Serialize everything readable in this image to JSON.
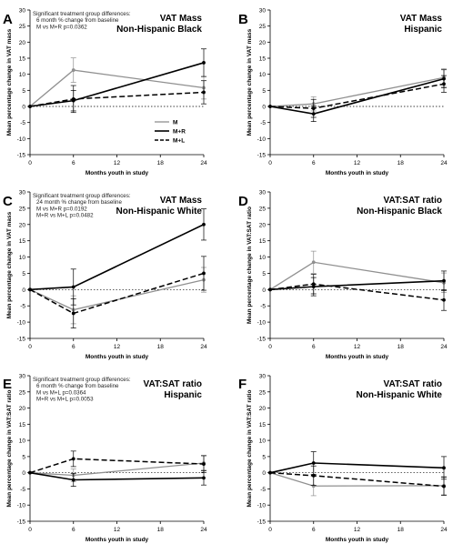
{
  "figure": {
    "xlabel": "Months youth in study",
    "legend": [
      "M",
      "M+R",
      "M+L"
    ]
  },
  "chart_data": [
    {
      "type": "line",
      "panel_letter": "A",
      "title_lines": [
        "VAT Mass",
        "Non-Hispanic Black"
      ],
      "ylabel": "Mean percentage change in VAT mass",
      "annotation": [
        "Significant treatment group differences:",
        "6 month % change from baseline",
        "M vs M+R p=0.0362"
      ],
      "legend_shown": true,
      "x": [
        0,
        6,
        24
      ],
      "xticks": [
        0,
        6,
        12,
        18,
        24
      ],
      "ylim": [
        -15,
        30
      ],
      "yticks": [
        -15,
        -10,
        -5,
        0,
        5,
        10,
        15,
        20,
        25,
        30
      ],
      "series": [
        {
          "name": "M",
          "values": [
            0,
            11.3,
            5.8
          ],
          "err": [
            0,
            3.8,
            3.5
          ]
        },
        {
          "name": "M+R",
          "values": [
            0,
            1.8,
            13.6
          ],
          "err": [
            0,
            3.2,
            4.3
          ]
        },
        {
          "name": "M+L",
          "values": [
            0,
            2.3,
            4.4
          ],
          "err": [
            0,
            4.2,
            3.6
          ]
        }
      ]
    },
    {
      "type": "line",
      "panel_letter": "B",
      "title_lines": [
        "VAT Mass",
        "Hispanic"
      ],
      "ylabel": "Mean percentage change in VAT mass",
      "annotation": [],
      "legend_shown": false,
      "x": [
        0,
        6,
        24
      ],
      "xticks": [
        0,
        6,
        12,
        18,
        24
      ],
      "ylim": [
        -15,
        30
      ],
      "yticks": [
        -15,
        -10,
        -5,
        0,
        5,
        10,
        15,
        20,
        25,
        30
      ],
      "series": [
        {
          "name": "M",
          "values": [
            0,
            0.8,
            9.0
          ],
          "err": [
            0,
            2.2,
            2.8
          ]
        },
        {
          "name": "M+R",
          "values": [
            0,
            -2.3,
            8.6
          ],
          "err": [
            0,
            2.4,
            2.8
          ]
        },
        {
          "name": "M+L",
          "values": [
            0,
            -0.6,
            7.0
          ],
          "err": [
            0,
            2.8,
            2.6
          ]
        }
      ]
    },
    {
      "type": "line",
      "panel_letter": "C",
      "title_lines": [
        "VAT Mass",
        "Non-Hispanic White"
      ],
      "ylabel": "Mean percentage change in VAT mass",
      "annotation": [
        "Significant treatment group differences:",
        "24 month % change from baseline",
        "M vs M+R p=0.0192",
        "M+R vs M+L p=0.0482"
      ],
      "legend_shown": false,
      "x": [
        0,
        6,
        24
      ],
      "xticks": [
        0,
        6,
        12,
        18,
        24
      ],
      "ylim": [
        -15,
        30
      ],
      "yticks": [
        -15,
        -10,
        -5,
        0,
        5,
        10,
        15,
        20,
        25,
        30
      ],
      "series": [
        {
          "name": "M",
          "values": [
            0,
            -6.2,
            3.0
          ],
          "err": [
            0,
            4.3,
            3.8
          ]
        },
        {
          "name": "M+R",
          "values": [
            0,
            0.8,
            20.0
          ],
          "err": [
            0,
            5.5,
            4.8
          ]
        },
        {
          "name": "M+L",
          "values": [
            0,
            -7.3,
            5.0
          ],
          "err": [
            0,
            4.5,
            5.2
          ]
        }
      ]
    },
    {
      "type": "line",
      "panel_letter": "D",
      "title_lines": [
        "VAT:SAT ratio",
        "Non-Hispanic Black"
      ],
      "ylabel": "Mean percentage change in VAT:SAT ratio",
      "annotation": [],
      "legend_shown": false,
      "x": [
        0,
        6,
        24
      ],
      "xticks": [
        0,
        6,
        12,
        18,
        24
      ],
      "ylim": [
        -15,
        30
      ],
      "yticks": [
        -15,
        -10,
        -5,
        0,
        5,
        10,
        15,
        20,
        25,
        30
      ],
      "series": [
        {
          "name": "M",
          "values": [
            0,
            8.4,
            2.1
          ],
          "err": [
            0,
            3.4,
            3.0
          ]
        },
        {
          "name": "M+R",
          "values": [
            0,
            0.9,
            2.7
          ],
          "err": [
            0,
            2.8,
            3.0
          ]
        },
        {
          "name": "M+L",
          "values": [
            0,
            1.7,
            -3.2
          ],
          "err": [
            0,
            3.0,
            3.2
          ]
        }
      ]
    },
    {
      "type": "line",
      "panel_letter": "E",
      "title_lines": [
        "VAT:SAT ratio",
        "Hispanic"
      ],
      "ylabel": "Mean percentage change in VAT:SAT ratio",
      "annotation": [
        "Significant treatment group differences:",
        "6 month % change from baseline",
        "M vs M+L p=0.0364",
        "M+R vs M+L p=0.0053"
      ],
      "legend_shown": false,
      "x": [
        0,
        6,
        24
      ],
      "xticks": [
        0,
        6,
        12,
        18,
        24
      ],
      "ylim": [
        -15,
        30
      ],
      "yticks": [
        -15,
        -10,
        -5,
        0,
        5,
        10,
        15,
        20,
        25,
        30
      ],
      "series": [
        {
          "name": "M",
          "values": [
            0,
            -0.8,
            3.0
          ],
          "err": [
            0,
            2.0,
            2.2
          ]
        },
        {
          "name": "M+R",
          "values": [
            0,
            -2.2,
            -1.6
          ],
          "err": [
            0,
            2.0,
            2.2
          ]
        },
        {
          "name": "M+L",
          "values": [
            0,
            4.3,
            2.7
          ],
          "err": [
            0,
            2.4,
            2.6
          ]
        }
      ]
    },
    {
      "type": "line",
      "panel_letter": "F",
      "title_lines": [
        "VAT:SAT ratio",
        "Non-Hispanic White"
      ],
      "ylabel": "Mean percentage change in VAT:SAT ratio",
      "annotation": [],
      "legend_shown": false,
      "x": [
        0,
        6,
        24
      ],
      "xticks": [
        0,
        6,
        12,
        18,
        24
      ],
      "ylim": [
        -15,
        30
      ],
      "yticks": [
        -15,
        -10,
        -5,
        0,
        5,
        10,
        15,
        20,
        25,
        30
      ],
      "series": [
        {
          "name": "M",
          "values": [
            0,
            -4.1,
            -4.0
          ],
          "err": [
            0,
            3.0,
            2.8
          ]
        },
        {
          "name": "M+R",
          "values": [
            0,
            3.0,
            1.5
          ],
          "err": [
            0,
            3.5,
            3.5
          ]
        },
        {
          "name": "M+L",
          "values": [
            0,
            -0.9,
            -4.2
          ],
          "err": [
            0,
            3.0,
            2.8
          ]
        }
      ]
    }
  ]
}
